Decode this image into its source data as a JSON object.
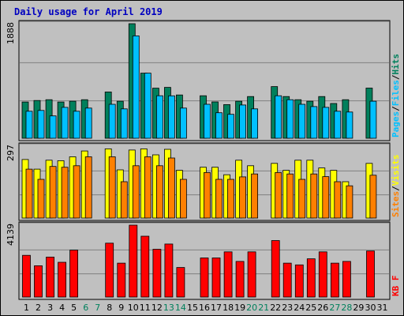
{
  "title": "Daily usage for April 2019",
  "colors": {
    "background": "#c0c0c0",
    "title": "#0000c0",
    "hits": "#00805c",
    "files": "#00c0ff",
    "sites": "#ff8000",
    "visits": "#ffff00",
    "kbytes": "#ff0000",
    "weekday_label": "#000000",
    "weekend_label": "#00805c"
  },
  "chart_data": [
    {
      "type": "bar",
      "panel": "hits-files",
      "max_label": "1888",
      "ylim": [
        0,
        1888
      ],
      "legend": [
        "Pages",
        "/",
        "Files",
        "/",
        "Hits"
      ],
      "categories": [
        "1",
        "2",
        "3",
        "4",
        "5",
        "6",
        "7",
        "8",
        "9",
        "10",
        "11",
        "12",
        "13",
        "14",
        "15",
        "16",
        "17",
        "18",
        "19",
        "20",
        "21",
        "22",
        "23",
        "24",
        "25",
        "26",
        "27",
        "28",
        "29",
        "30",
        "31"
      ],
      "weekend_days": [
        "6",
        "7",
        "13",
        "14",
        "20",
        "21",
        "27",
        "28"
      ],
      "series": [
        {
          "name": "Hits",
          "values": [
            598,
            623,
            636,
            598,
            611,
            636,
            null,
            763,
            611,
            1888,
            1073,
            826,
            839,
            713,
            null,
            700,
            599,
            555,
            611,
            687,
            null,
            852,
            687,
            636,
            611,
            687,
            573,
            636,
            null,
            827,
            null
          ]
        },
        {
          "name": "Files",
          "values": [
            445,
            458,
            369,
            509,
            445,
            497,
            null,
            560,
            484,
            1687,
            1073,
            700,
            699,
            497,
            null,
            560,
            420,
            395,
            548,
            484,
            null,
            700,
            636,
            560,
            522,
            509,
            445,
            432,
            null,
            611,
            null
          ]
        }
      ]
    },
    {
      "type": "bar",
      "panel": "visits-sites",
      "max_label": "297",
      "ylim": [
        0,
        297
      ],
      "legend": [
        "Sites",
        "/",
        "Visits"
      ],
      "categories": [
        "1",
        "2",
        "3",
        "4",
        "5",
        "6",
        "7",
        "8",
        "9",
        "10",
        "11",
        "12",
        "13",
        "14",
        "15",
        "16",
        "17",
        "18",
        "19",
        "20",
        "21",
        "22",
        "23",
        "24",
        "25",
        "26",
        "27",
        "28",
        "29",
        "30",
        "31"
      ],
      "weekend_days": [
        "6",
        "7",
        "13",
        "14",
        "20",
        "21",
        "27",
        "28"
      ],
      "series": [
        {
          "name": "Visits",
          "values": [
            242,
            202,
            239,
            237,
            253,
            277,
            null,
            286,
            199,
            281,
            286,
            261,
            284,
            197,
            null,
            210,
            210,
            179,
            239,
            216,
            null,
            226,
            197,
            239,
            239,
            207,
            197,
            150,
            null,
            226,
            null
          ]
        },
        {
          "name": "Sites",
          "values": [
            202,
            160,
            213,
            210,
            216,
            253,
            null,
            253,
            150,
            216,
            253,
            216,
            248,
            160,
            null,
            188,
            160,
            160,
            170,
            182,
            null,
            188,
            182,
            160,
            182,
            171,
            150,
            133,
            null,
            177,
            null
          ]
        }
      ]
    },
    {
      "type": "bar",
      "panel": "kbytes",
      "max_label": "4139",
      "ylim": [
        0,
        4139
      ],
      "legend": [
        "KB",
        "F"
      ],
      "categories": [
        "1",
        "2",
        "3",
        "4",
        "5",
        "6",
        "7",
        "8",
        "9",
        "10",
        "11",
        "12",
        "13",
        "14",
        "15",
        "16",
        "17",
        "18",
        "19",
        "20",
        "21",
        "22",
        "23",
        "24",
        "25",
        "26",
        "27",
        "28",
        "29",
        "30",
        "31"
      ],
      "weekend_days": [
        "6",
        "7",
        "13",
        "14",
        "20",
        "21",
        "27",
        "28"
      ],
      "series": [
        {
          "name": "KB F",
          "values": [
            2400,
            1800,
            2300,
            2000,
            2700,
            null,
            null,
            3100,
            1950,
            4139,
            3500,
            2750,
            3050,
            1700,
            null,
            2250,
            2250,
            2600,
            2050,
            2600,
            null,
            3250,
            1950,
            1850,
            2200,
            2600,
            1950,
            2050,
            null,
            2650,
            null
          ]
        }
      ]
    }
  ]
}
